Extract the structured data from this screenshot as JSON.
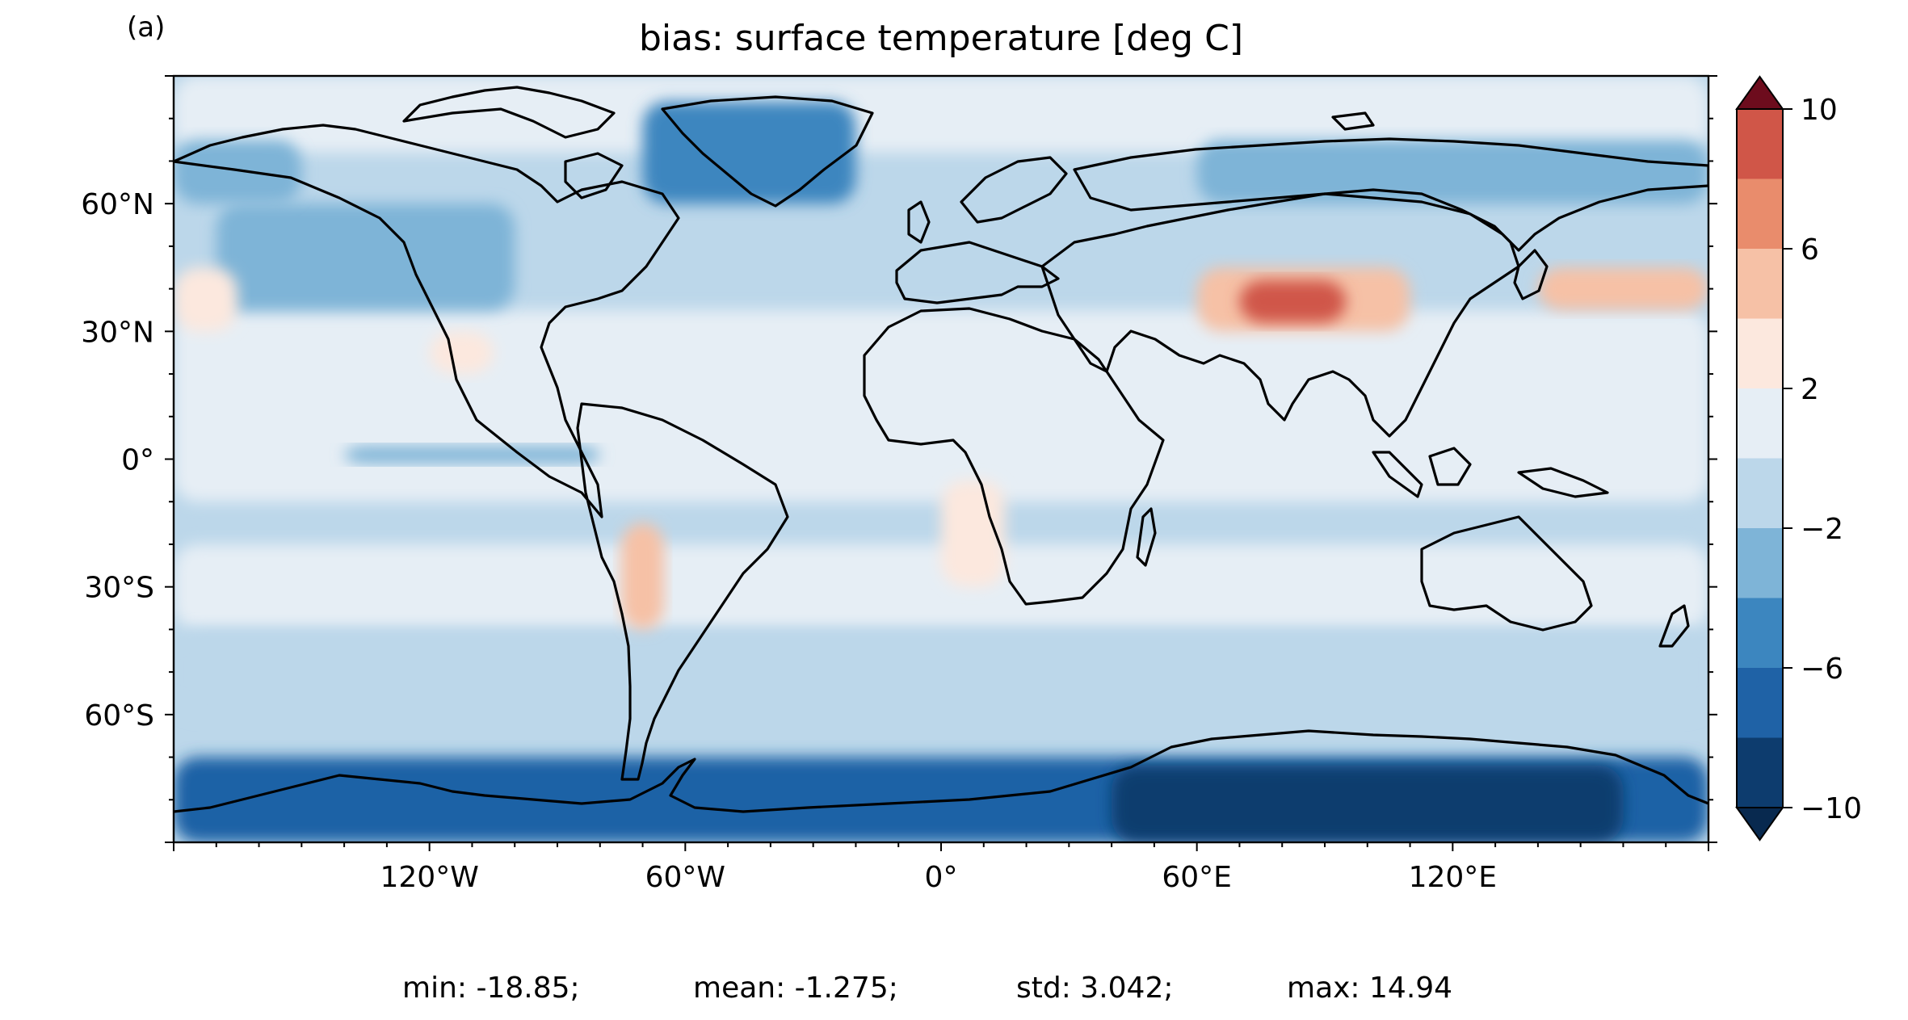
{
  "figure": {
    "panel_label": "(a)",
    "title": "bias: surface temperature [deg C]"
  },
  "map": {
    "projection": "plate carree",
    "lon_range": [
      -180,
      180
    ],
    "lat_range": [
      -90,
      90
    ],
    "lon_ticks": [
      {
        "value": -120,
        "label": "120°W"
      },
      {
        "value": -60,
        "label": "60°W"
      },
      {
        "value": 0,
        "label": "0°"
      },
      {
        "value": 60,
        "label": "60°E"
      },
      {
        "value": 120,
        "label": "120°E"
      }
    ],
    "lat_ticks": [
      {
        "value": 60,
        "label": "60°N"
      },
      {
        "value": 30,
        "label": "30°N"
      },
      {
        "value": 0,
        "label": "0°"
      },
      {
        "value": -30,
        "label": "30°S"
      },
      {
        "value": -60,
        "label": "60°S"
      }
    ],
    "coastlines": true,
    "field_description_regions": [
      {
        "lon": [
          -180,
          180
        ],
        "lat": [
          -90,
          90
        ],
        "value": -1
      },
      {
        "lon": [
          -180,
          180
        ],
        "lat": [
          -10,
          35
        ],
        "value": 1
      },
      {
        "lon": [
          -180,
          180
        ],
        "lat": [
          -40,
          -20
        ],
        "value": 1
      },
      {
        "lon": [
          -180,
          180
        ],
        "lat": [
          72,
          90
        ],
        "value": 1
      },
      {
        "lon": [
          -180,
          180
        ],
        "lat": [
          -60,
          -40
        ],
        "value": -1
      },
      {
        "lon": [
          -170,
          -100
        ],
        "lat": [
          35,
          60
        ],
        "value": -3
      },
      {
        "lon": [
          -140,
          -80
        ],
        "lat": [
          -1,
          3
        ],
        "value": -4
      },
      {
        "lon": [
          -70,
          -20
        ],
        "lat": [
          60,
          84
        ],
        "value": -6
      },
      {
        "lon": [
          -180,
          180
        ],
        "lat": [
          -90,
          -70
        ],
        "value": -7
      },
      {
        "lon": [
          40,
          160
        ],
        "lat": [
          -90,
          -72
        ],
        "value": -9
      },
      {
        "lon": [
          60,
          110
        ],
        "lat": [
          30,
          45
        ],
        "value": 5
      },
      {
        "lon": [
          70,
          95
        ],
        "lat": [
          32,
          42
        ],
        "value": 8
      },
      {
        "lon": [
          140,
          180
        ],
        "lat": [
          35,
          45
        ],
        "value": 4
      },
      {
        "lon": [
          0,
          15
        ],
        "lat": [
          -30,
          -5
        ],
        "value": 3
      },
      {
        "lon": [
          -75,
          -65
        ],
        "lat": [
          -40,
          -15
        ],
        "value": 4
      },
      {
        "lon": [
          -120,
          -105
        ],
        "lat": [
          20,
          30
        ],
        "value": 3
      },
      {
        "lon": [
          -180,
          -165
        ],
        "lat": [
          30,
          45
        ],
        "value": 3
      },
      {
        "lon": [
          60,
          180
        ],
        "lat": [
          60,
          75
        ],
        "value": -3
      },
      {
        "lon": [
          -180,
          -150
        ],
        "lat": [
          60,
          75
        ],
        "value": -3
      }
    ]
  },
  "colorbar": {
    "levels": [
      -10,
      -8,
      -6,
      -4,
      -2,
      0,
      2,
      4,
      6,
      8,
      10
    ],
    "tick_values": [
      -10,
      -6,
      -2,
      2,
      6,
      10
    ],
    "tick_labels": [
      "−10",
      "−6",
      "−2",
      "2",
      "6",
      "10"
    ],
    "colors": [
      "#0d3c6e",
      "#1f62a6",
      "#3c86bf",
      "#7eb4d7",
      "#bcd7ea",
      "#e6eef5",
      "#fce8de",
      "#f6c1a6",
      "#e98c6c",
      "#d05648",
      "#a51c2a"
    ],
    "under_color": "#08294f",
    "over_color": "#6d0c1d",
    "extend": "both"
  },
  "stats": {
    "min": "min: -18.85;",
    "mean": "mean: -1.275;",
    "std": "std: 3.042;",
    "max": "max: 14.94"
  }
}
